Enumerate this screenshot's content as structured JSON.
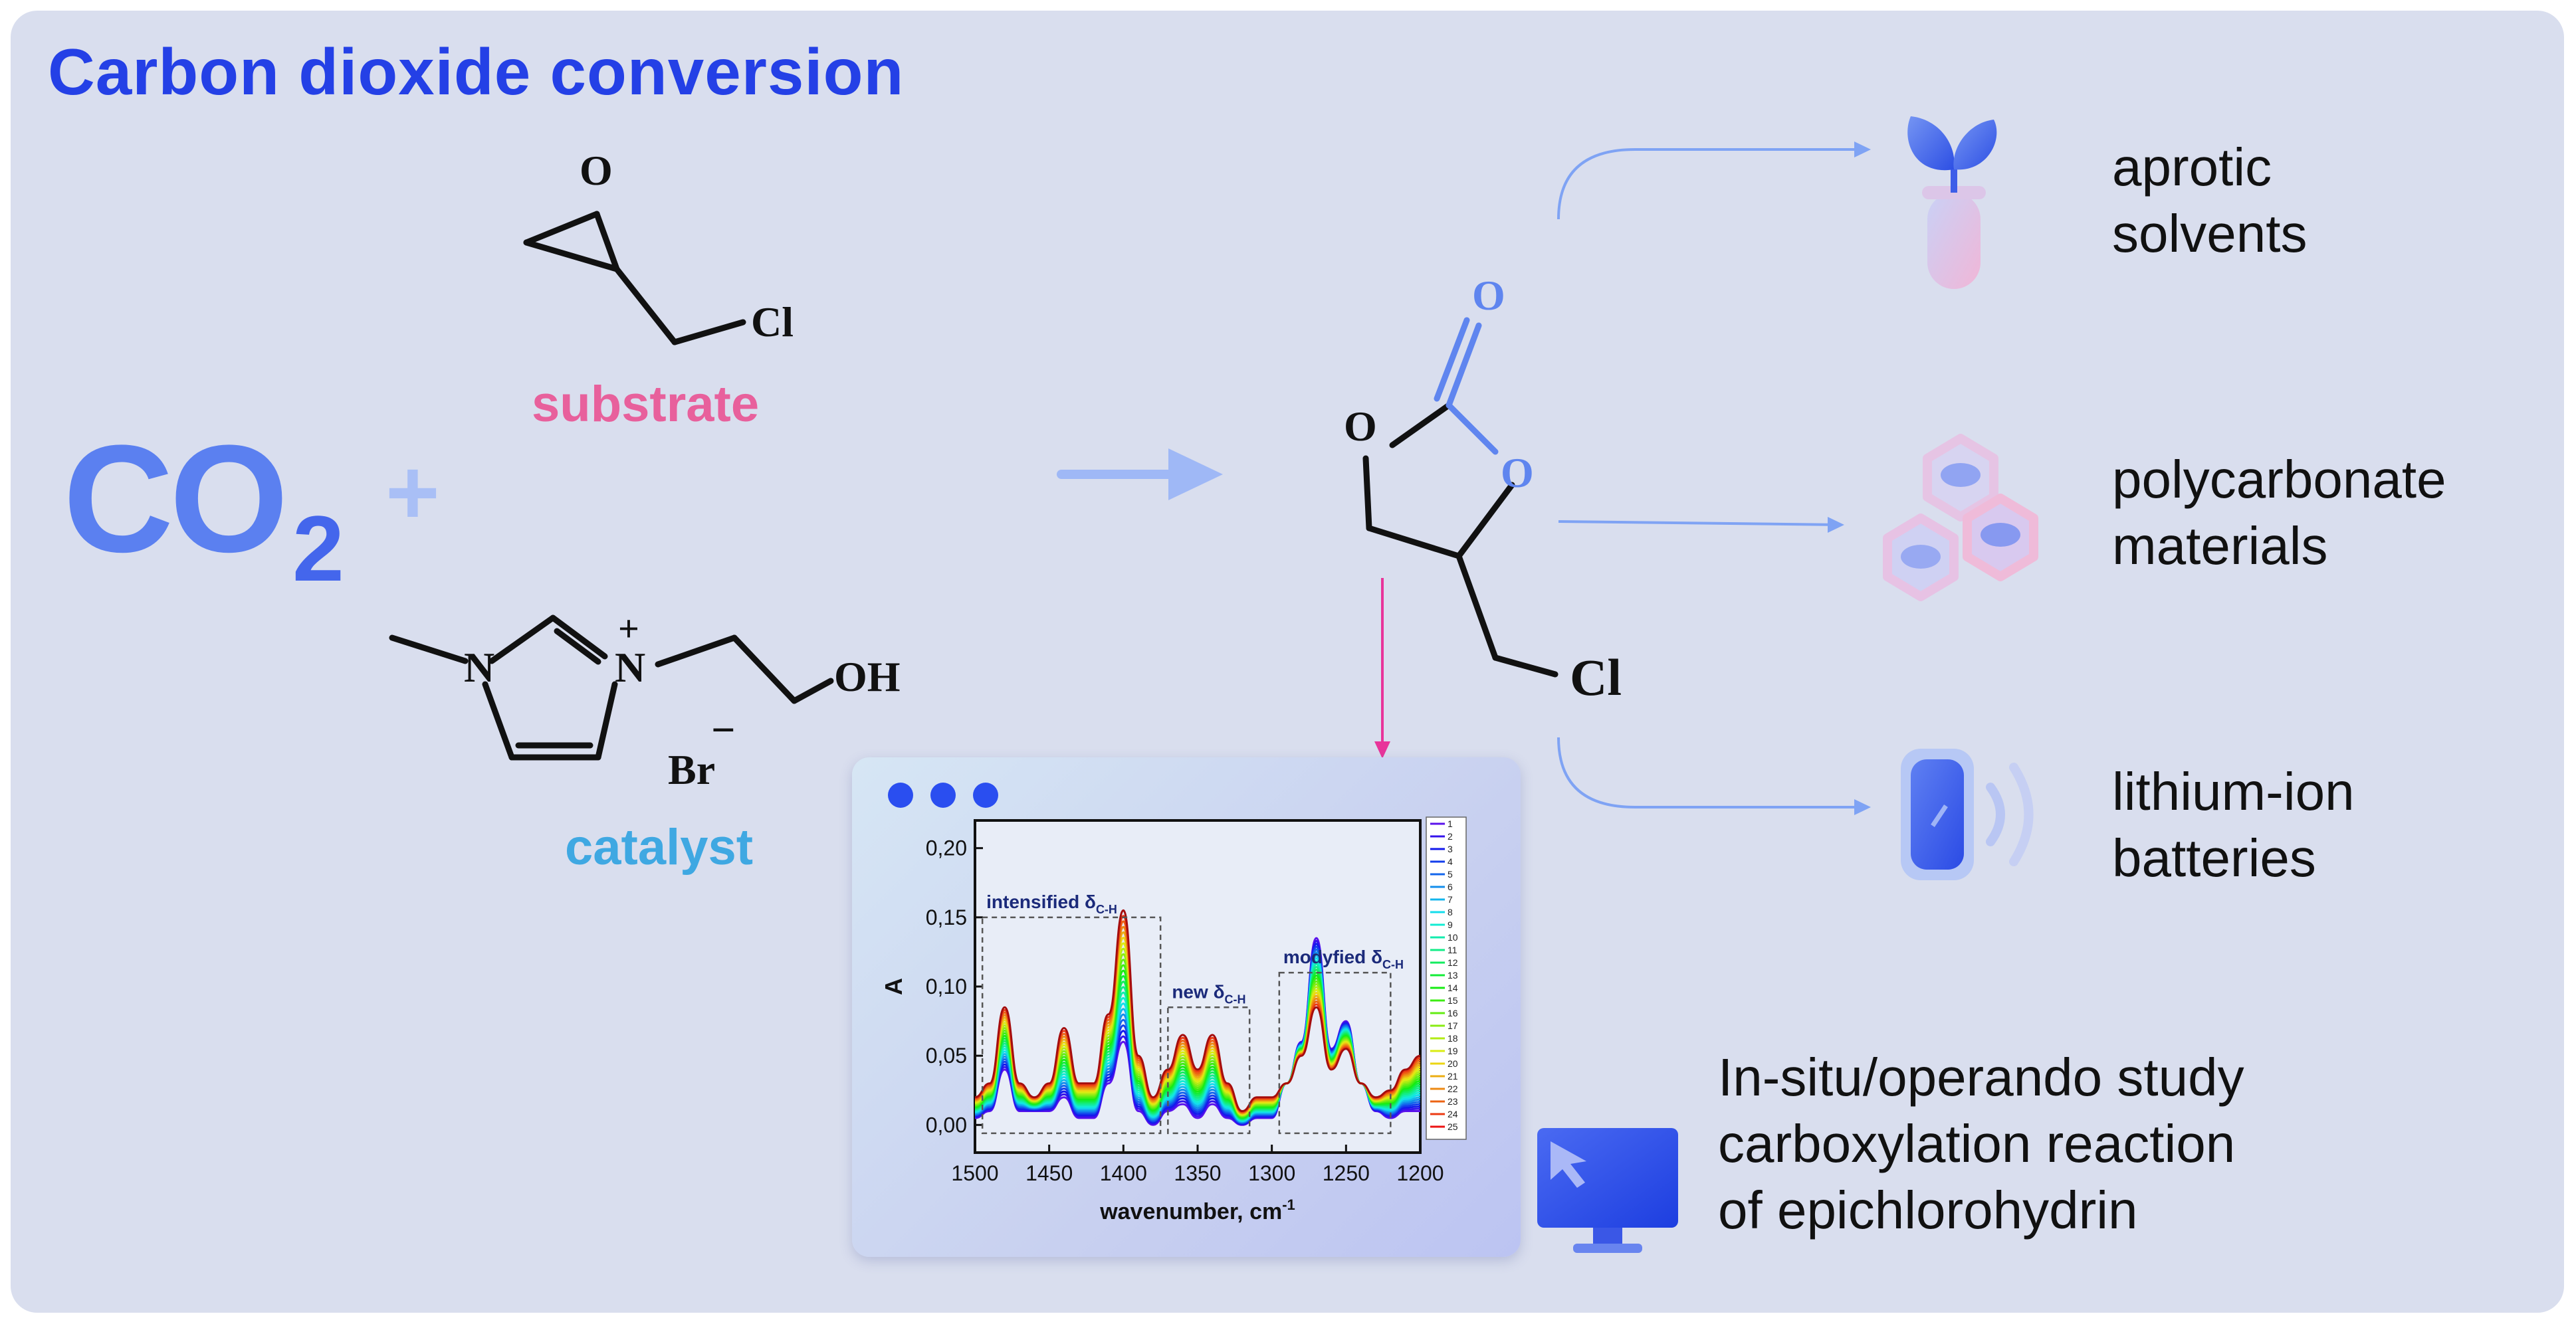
{
  "title": "Carbon dioxide conversion",
  "reactants": {
    "co2": "CO",
    "co2_subscript": "2",
    "plus": "+",
    "substrate": {
      "atom_o": "O",
      "atom_cl": "Cl",
      "label": "substrate"
    },
    "catalyst": {
      "atom_n1": "N",
      "atom_n2": "N",
      "charge_plus": "+",
      "atom_oh": "OH",
      "anion": "Br",
      "charge_minus": "−",
      "label": "catalyst"
    }
  },
  "product": {
    "atom_o_carbonyl": "O",
    "atom_o_left": "O",
    "atom_o_right": "O",
    "atom_cl": "Cl"
  },
  "applications": [
    {
      "line1": "aprotic",
      "line2": "solvents",
      "icon": "plant-test-tube-icon"
    },
    {
      "line1": "polycarbonate",
      "line2": "materials",
      "icon": "polymer-hexagon-icon"
    },
    {
      "line1": "lithium-ion",
      "line2": "batteries",
      "icon": "battery-icon"
    }
  ],
  "study": {
    "line1": "In-situ/operando study",
    "line2": "carboxylation reaction",
    "line3": "of epichlorohydrin",
    "icon": "monitor-cursor-icon"
  },
  "colors": {
    "title": "#2440e6",
    "substrate": "#e8609c",
    "catalyst": "#3fa8e2",
    "arrow": "#7fa3f4",
    "panel": "#d9deee",
    "pink_arrow": "#e8359a"
  },
  "chart_data": {
    "type": "line",
    "xlabel": "wavenumber, cm",
    "xlabel_sup": "-1",
    "ylabel": "A",
    "xlim": [
      1500,
      1200
    ],
    "ylim": [
      -0.02,
      0.22
    ],
    "x_ticks": [
      "1500",
      "1450",
      "1400",
      "1350",
      "1300",
      "1250",
      "1200"
    ],
    "y_ticks": [
      "0,00",
      "0,05",
      "0,10",
      "0,15",
      "0,20"
    ],
    "annotations": [
      {
        "text": "intensified δ",
        "sub": "C-H"
      },
      {
        "text": "new δ",
        "sub": "C-H"
      },
      {
        "text": "modyfied δ",
        "sub": "C-H"
      }
    ],
    "legend": [
      "1",
      "2",
      "3",
      "4",
      "5",
      "6",
      "7",
      "8",
      "9",
      "10",
      "11",
      "12",
      "13",
      "14",
      "15",
      "16",
      "17",
      "18",
      "19",
      "20",
      "21",
      "22",
      "23",
      "24",
      "25"
    ],
    "series_first": {
      "name": "1",
      "x": [
        1500,
        1490,
        1480,
        1470,
        1460,
        1450,
        1440,
        1430,
        1420,
        1410,
        1400,
        1390,
        1380,
        1370,
        1360,
        1350,
        1340,
        1330,
        1320,
        1310,
        1300,
        1290,
        1280,
        1270,
        1260,
        1250,
        1240,
        1230,
        1220,
        1210,
        1200
      ],
      "y": [
        0.005,
        0.01,
        0.04,
        0.01,
        0.01,
        0.01,
        0.02,
        0.005,
        0.005,
        0.03,
        0.06,
        0.01,
        0.0,
        0.01,
        0.015,
        0.005,
        0.015,
        0.005,
        0.0,
        0.005,
        0.005,
        0.03,
        0.06,
        0.135,
        0.055,
        0.075,
        0.03,
        0.01,
        0.005,
        0.01,
        0.01
      ]
    },
    "series_last": {
      "name": "25",
      "x": [
        1500,
        1490,
        1480,
        1470,
        1460,
        1450,
        1440,
        1430,
        1420,
        1410,
        1400,
        1390,
        1380,
        1370,
        1360,
        1350,
        1340,
        1330,
        1320,
        1310,
        1300,
        1290,
        1280,
        1270,
        1260,
        1250,
        1240,
        1230,
        1220,
        1210,
        1200
      ],
      "y": [
        0.02,
        0.03,
        0.085,
        0.03,
        0.02,
        0.03,
        0.07,
        0.03,
        0.03,
        0.08,
        0.155,
        0.05,
        0.02,
        0.04,
        0.065,
        0.04,
        0.065,
        0.03,
        0.01,
        0.02,
        0.02,
        0.03,
        0.05,
        0.085,
        0.04,
        0.055,
        0.03,
        0.02,
        0.025,
        0.04,
        0.05
      ]
    },
    "grid": false,
    "legend_placement": "right"
  }
}
